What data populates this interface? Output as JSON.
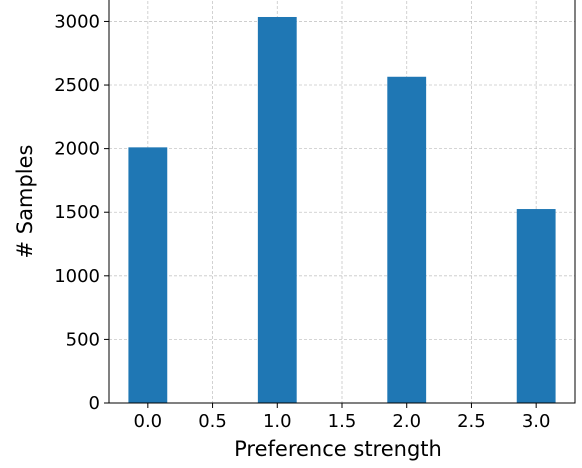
{
  "chart_data": {
    "type": "bar",
    "x": [
      0.0,
      1.0,
      2.0,
      3.0
    ],
    "values": [
      2010,
      3035,
      2565,
      1525
    ],
    "bar_width": 0.3,
    "xlabel": "Preference strength",
    "ylabel": "# Samples",
    "xlim": [
      -0.3,
      3.3
    ],
    "ylim": [
      0,
      3200
    ],
    "xticks": [
      0.0,
      0.5,
      1.0,
      1.5,
      2.0,
      2.5,
      3.0
    ],
    "xtick_labels": [
      "0.0",
      "0.5",
      "1.0",
      "1.5",
      "2.0",
      "2.5",
      "3.0"
    ],
    "yticks": [
      0,
      500,
      1000,
      1500,
      2000,
      2500,
      3000
    ],
    "ytick_labels": [
      "0",
      "500",
      "1000",
      "1500",
      "2000",
      "2500",
      "3000"
    ],
    "grid": true,
    "bar_color": "#1f77b4"
  }
}
